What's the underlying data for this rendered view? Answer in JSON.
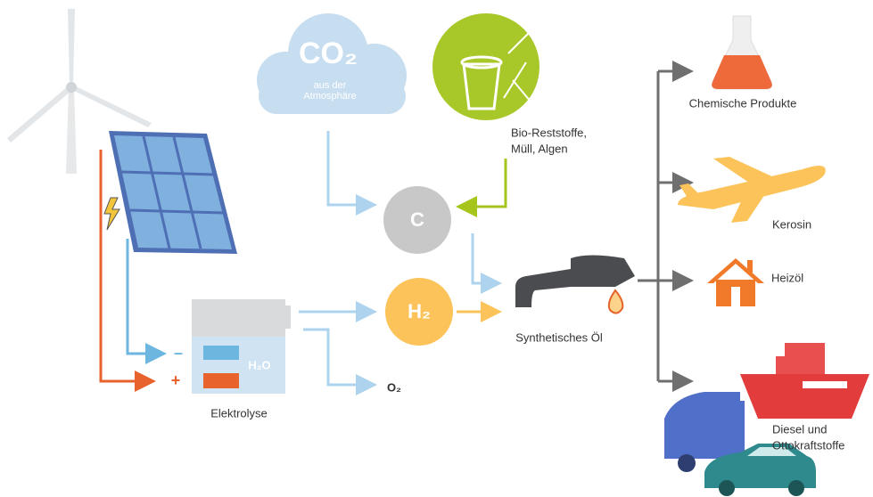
{
  "sources": {
    "co2": {
      "formula": "CO₂",
      "caption": [
        "aus der",
        "Atmosphäre"
      ]
    },
    "bio": {
      "caption": [
        "Bio-Reststoffe,",
        "Müll, Algen"
      ]
    }
  },
  "intermediates": {
    "carbon": "C",
    "hydrogen": "H₂",
    "oxygen": "O₂"
  },
  "electrolysis": {
    "label": "Elektrolyse",
    "water": "H₂O",
    "minus": "–",
    "plus": "+"
  },
  "product": "Synthetisches Öl",
  "outputs": [
    {
      "label": [
        "Chemische Produkte"
      ]
    },
    {
      "label": [
        "Kerosin"
      ]
    },
    {
      "label": [
        "Heizöl"
      ]
    },
    {
      "label": [
        "Diesel und",
        "Ottokraftstoffe"
      ]
    }
  ]
}
